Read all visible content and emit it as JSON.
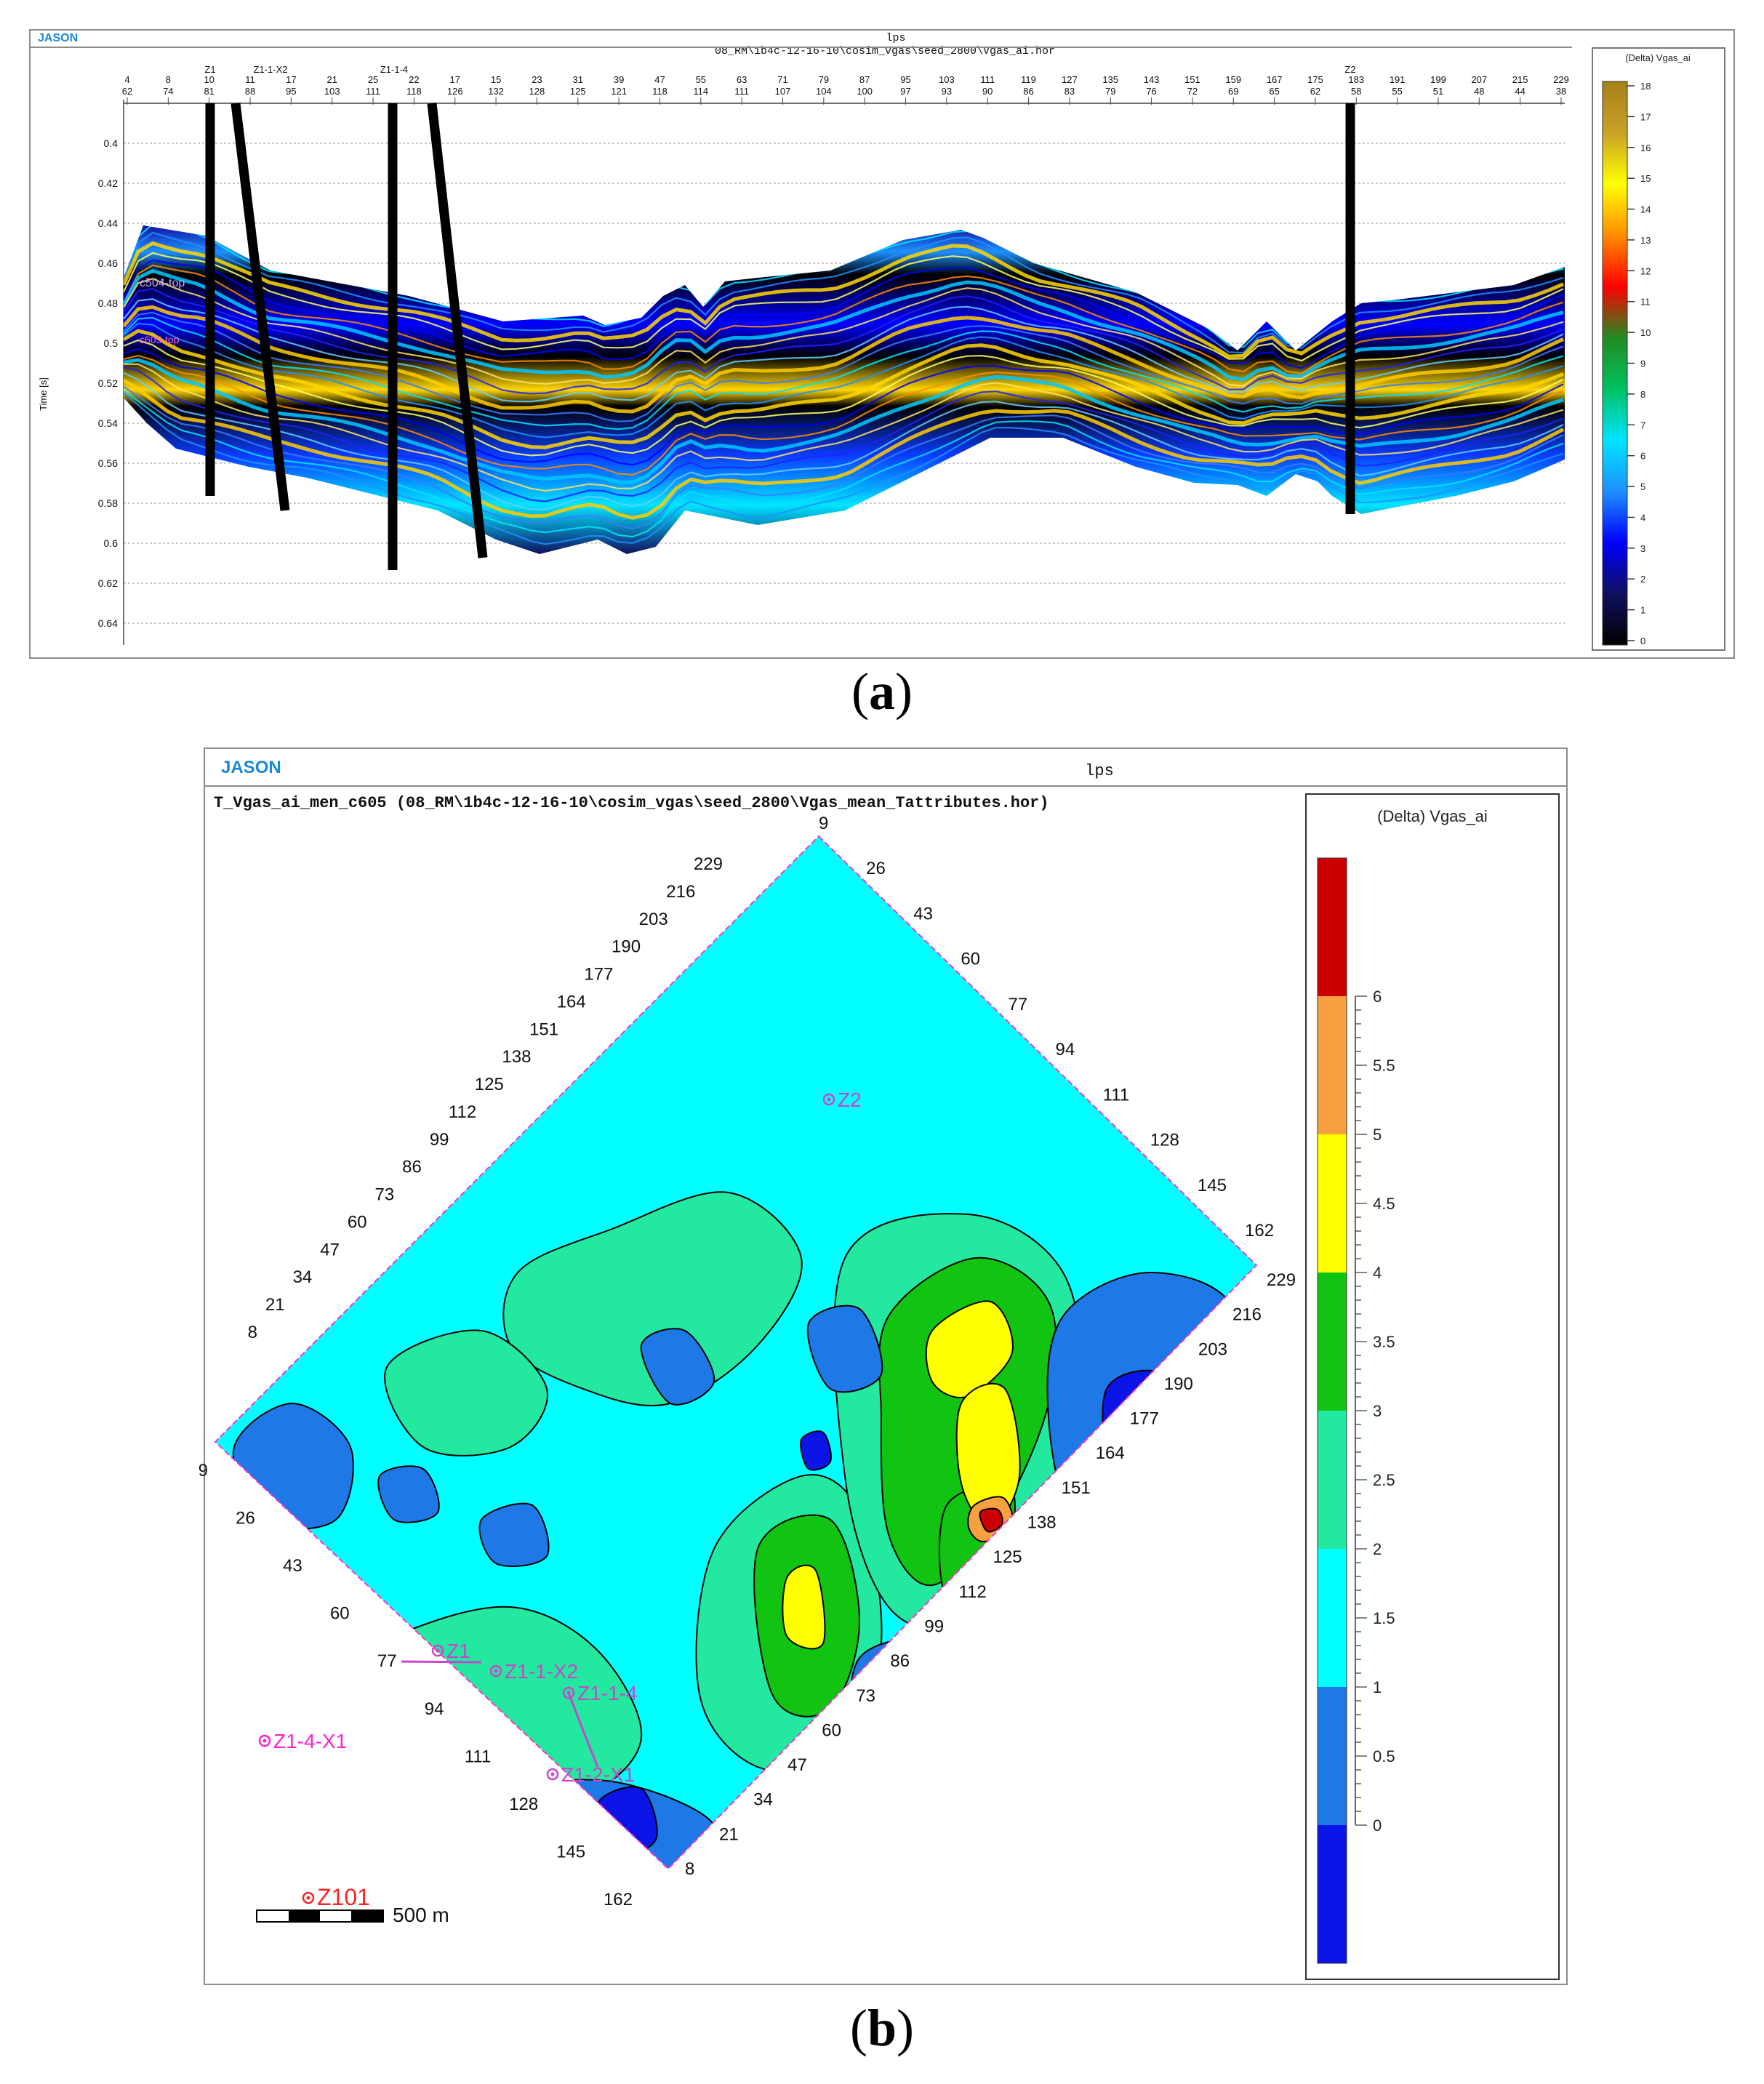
{
  "panel_a": {
    "brand": "JASON",
    "project": "lps",
    "title": "08_RM\\1b4c-12-16-10\\cosim_vgas\\seed_2800\\Vgas_ai.hor",
    "y_axis_label": "Time [s]",
    "y_ticks": [
      "0.4",
      "0.42",
      "0.44",
      "0.46",
      "0.48",
      "0.5",
      "0.52",
      "0.54",
      "0.56",
      "0.58",
      "0.6",
      "0.62",
      "0.64"
    ],
    "trace_top": [
      "4",
      "8",
      "10",
      "11",
      "17",
      "21",
      "25",
      "22",
      "17",
      "15",
      "23",
      "31",
      "39",
      "47",
      "55",
      "63",
      "71",
      "79",
      "87",
      "95",
      "103",
      "111",
      "119",
      "127",
      "135",
      "143",
      "151",
      "159",
      "167",
      "175",
      "183",
      "191",
      "199",
      "207",
      "215",
      "229"
    ],
    "trace_bottom": [
      "62",
      "74",
      "81",
      "88",
      "95",
      "103",
      "111",
      "118",
      "126",
      "132",
      "128",
      "125",
      "121",
      "118",
      "114",
      "111",
      "107",
      "104",
      "100",
      "97",
      "93",
      "90",
      "86",
      "83",
      "79",
      "76",
      "72",
      "69",
      "65",
      "62",
      "58",
      "55",
      "51",
      "48",
      "44",
      "38"
    ],
    "wells": [
      "Z1",
      "Z1-1-X2",
      "Z1-1-4",
      "Z2"
    ],
    "horizon_labels": [
      "c504-top",
      "c605-top"
    ],
    "colorbar": {
      "title": "(Delta) Vgas_ai",
      "ticks": [
        "18",
        "17",
        "16",
        "15",
        "14",
        "13",
        "12",
        "11",
        "10",
        "9",
        "8",
        "7",
        "6",
        "5",
        "4",
        "3",
        "2",
        "1",
        "0"
      ],
      "gradient": [
        "#000000",
        "#101060",
        "#0000ff",
        "#1e90ff",
        "#00e5ff",
        "#00c060",
        "#228b22",
        "#ff0000",
        "#ff8c00",
        "#ffff00",
        "#c9a227",
        "#a6801a"
      ]
    },
    "caption_letter": "a"
  },
  "panel_b": {
    "brand": "JASON",
    "project": "lps",
    "title": "T_Vgas_ai_men_c605 (08_RM\\1b4c-12-16-10\\cosim_vgas\\seed_2800\\Vgas_mean_Tattributes.hor)",
    "inline_labels_top_left": [
      "229",
      "216",
      "203",
      "190",
      "177",
      "164",
      "151",
      "138",
      "125",
      "112",
      "99",
      "86",
      "73",
      "60",
      "47",
      "34",
      "21",
      "8"
    ],
    "inline_labels_top_right": [
      "9",
      "26",
      "43",
      "60",
      "77",
      "94",
      "111",
      "128",
      "145",
      "162"
    ],
    "inline_labels_bottom_left": [
      "9",
      "26",
      "43",
      "60",
      "77",
      "94",
      "111",
      "128",
      "145",
      "162"
    ],
    "inline_labels_bottom_right": [
      "8",
      "21",
      "34",
      "47",
      "60",
      "73",
      "86",
      "99",
      "112",
      "125",
      "138",
      "151",
      "164",
      "177",
      "190",
      "203",
      "216",
      "229"
    ],
    "wells": [
      "Z2",
      "Z1",
      "Z1-1-X2",
      "Z1-1-4",
      "Z1-4-X1",
      "Z1-2-X1",
      "Z101"
    ],
    "scalebar_label": "500 m",
    "colorbar": {
      "title": "(Delta) Vgas_ai",
      "ticks": [
        "6",
        "5.5",
        "5",
        "4.5",
        "4",
        "3.5",
        "3",
        "2.5",
        "2",
        "1.5",
        "1",
        "0.5",
        "0"
      ],
      "classes": [
        "#cc0000",
        "#f7a040",
        "#ffff00",
        "#11c411",
        "#22e8a0",
        "#00ffff",
        "#1e78e6",
        "#0a14e6"
      ]
    },
    "caption_letter": "b"
  }
}
